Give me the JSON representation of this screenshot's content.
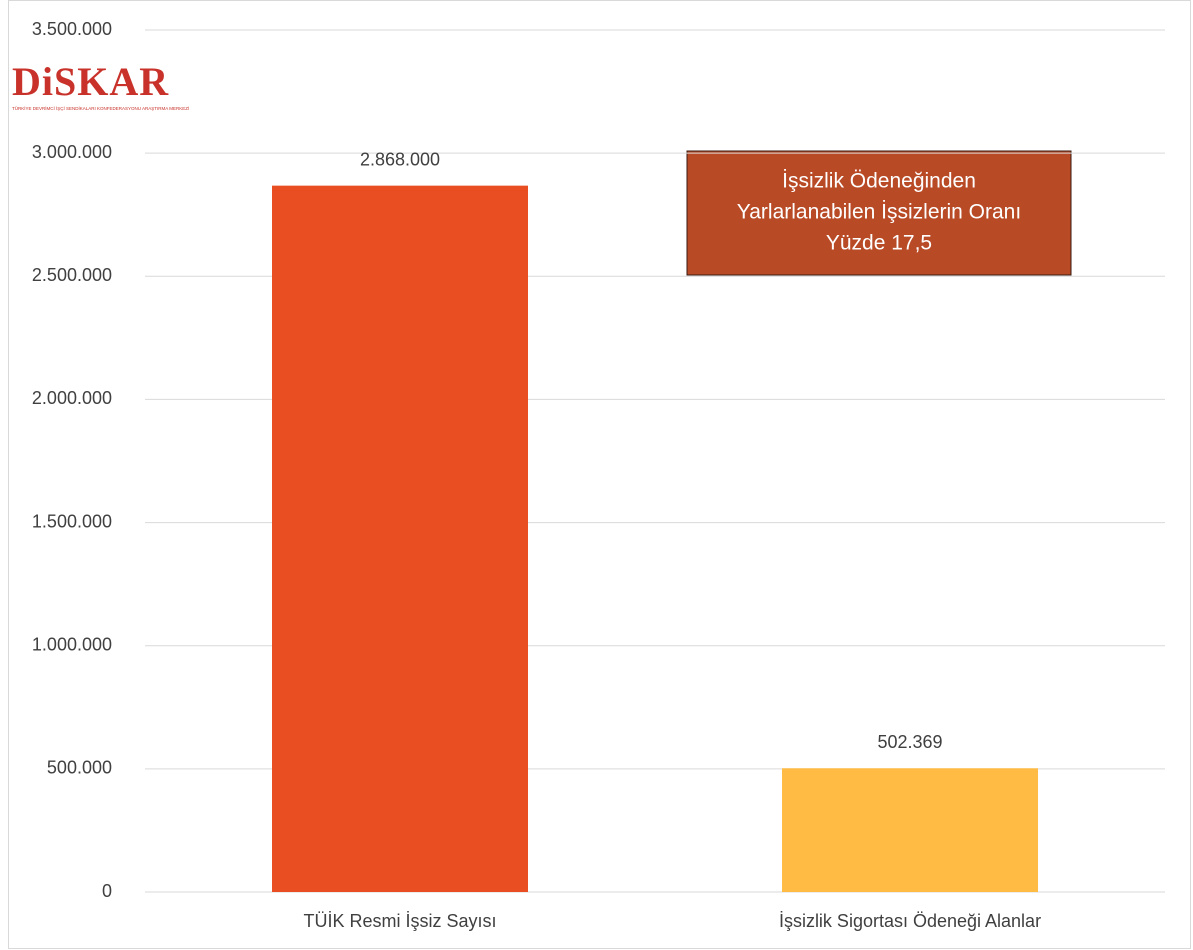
{
  "chart_data": {
    "type": "bar",
    "categories": [
      "TÜİK Resmi İşsiz Sayısı",
      "İşsizlik Sigortası Ödeneği Alanlar"
    ],
    "values": [
      2868000,
      502369
    ],
    "value_labels": [
      "2.868.000",
      "502.369"
    ],
    "colors": [
      "#e84e22",
      "#ffbb44"
    ],
    "ylim": [
      0,
      3500000
    ],
    "yticks": [
      0,
      {
        "value": 500000,
        "label": "500.000"
      },
      {
        "value": 1000000,
        "label": "1.000.000"
      },
      {
        "value": 1500000,
        "label": "1.500.000"
      },
      {
        "value": 2000000,
        "label": "2.000.000"
      },
      {
        "value": 2500000,
        "label": "2.500.000"
      },
      {
        "value": 3000000,
        "label": "3.000.000"
      },
      {
        "value": 3500000,
        "label": "3.500.000"
      }
    ],
    "grid": true,
    "annotation": [
      "İşsizlik Ödeneğinden",
      "Yarlarlanabilen İşsizlerin Oranı",
      "Yüzde 17,5"
    ],
    "logo": {
      "name": "DiSKAR",
      "subtitle": "TÜRKİYE DEVRİMCİ İŞÇİ SENDİKALARI KONFEDERASYONU ARAŞTIRMA MERKEZİ"
    }
  }
}
